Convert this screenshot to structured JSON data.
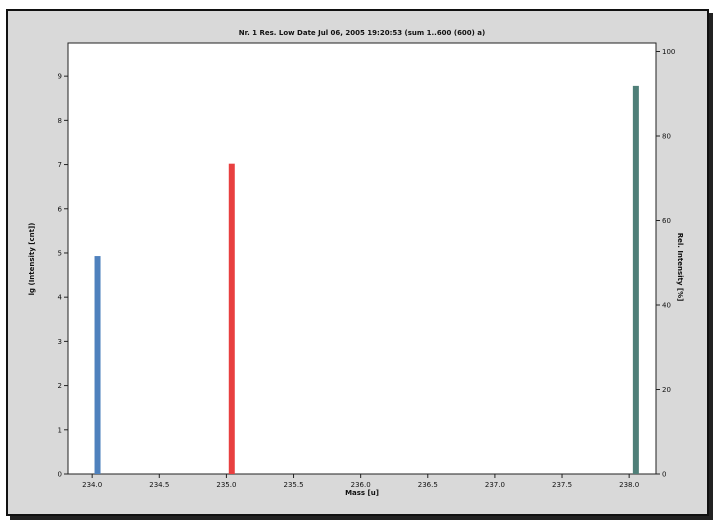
{
  "chart_data": {
    "type": "bar",
    "title": "Nr. 1  Res. Low  Date Jul 06, 2005 19:20:53 (sum 1..600 (600) a)",
    "xlabel": "Mass [u]",
    "ylabel": "lg (Intensity [cnt])",
    "ylabel_right": "Rel. Intensity [%]",
    "xlim": [
      233.82,
      238.2
    ],
    "ylim": [
      0,
      9.75
    ],
    "ylim_right": [
      0,
      100
    ],
    "x_ticks": [
      "234.0",
      "234.5",
      "235.0",
      "235.5",
      "236.0",
      "236.5",
      "237.0",
      "237.5",
      "238.0"
    ],
    "y_ticks": [
      "0",
      "1",
      "2",
      "3",
      "4",
      "5",
      "6",
      "7",
      "8",
      "9"
    ],
    "y_right_ticks": [
      "0",
      "20",
      "40",
      "60",
      "80",
      "100"
    ],
    "grid": false,
    "series": [
      {
        "x": 234.04,
        "value": 4.93,
        "color": "#4f81bd"
      },
      {
        "x": 235.04,
        "value": 7.02,
        "color": "#e84040"
      },
      {
        "x": 238.05,
        "value": 8.78,
        "color": "#4f7f78"
      }
    ]
  }
}
